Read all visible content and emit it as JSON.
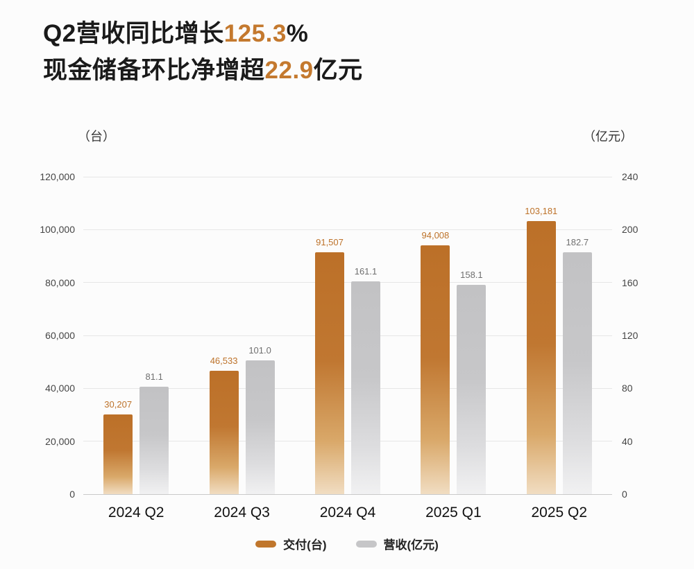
{
  "title": {
    "line1_prefix": "Q2营收同比增长",
    "line1_highlight": "125.3",
    "line1_suffix": "%",
    "line2_prefix": "现金储备环比净增超",
    "line2_highlight": "22.9",
    "line2_suffix": "亿元"
  },
  "colors": {
    "accent": "#C4792E",
    "bar_orange": "#C0762C",
    "bar_gray": "#C6C6C8",
    "grid": "#E6E6E6"
  },
  "chart_data": {
    "type": "bar",
    "categories": [
      "2024 Q2",
      "2024 Q3",
      "2024 Q4",
      "2025 Q1",
      "2025 Q2"
    ],
    "series": [
      {
        "name": "交付(台)",
        "axis": "left",
        "color": "#C0762C",
        "values": [
          30207,
          46533,
          91507,
          94008,
          103181
        ],
        "labels": [
          "30,207",
          "46,533",
          "91,507",
          "94,008",
          "103,181"
        ]
      },
      {
        "name": "营收(亿元)",
        "axis": "right",
        "color": "#C6C6C8",
        "values": [
          81.1,
          101.0,
          161.1,
          158.1,
          182.7
        ],
        "labels": [
          "81.1",
          "101.0",
          "161.1",
          "158.1",
          "182.7"
        ]
      }
    ],
    "left_axis": {
      "label": "（台）",
      "max": 120000,
      "ticks": [
        0,
        20000,
        40000,
        60000,
        80000,
        100000,
        120000
      ],
      "tick_labels": [
        "0",
        "20,000",
        "40,000",
        "60,000",
        "80,000",
        "100,000",
        "120,000"
      ]
    },
    "right_axis": {
      "label": "（亿元）",
      "max": 240,
      "ticks": [
        0,
        40,
        80,
        120,
        160,
        200,
        240
      ],
      "tick_labels": [
        "0",
        "40",
        "80",
        "120",
        "160",
        "200",
        "240"
      ]
    },
    "grid": true,
    "legend_position": "bottom"
  }
}
